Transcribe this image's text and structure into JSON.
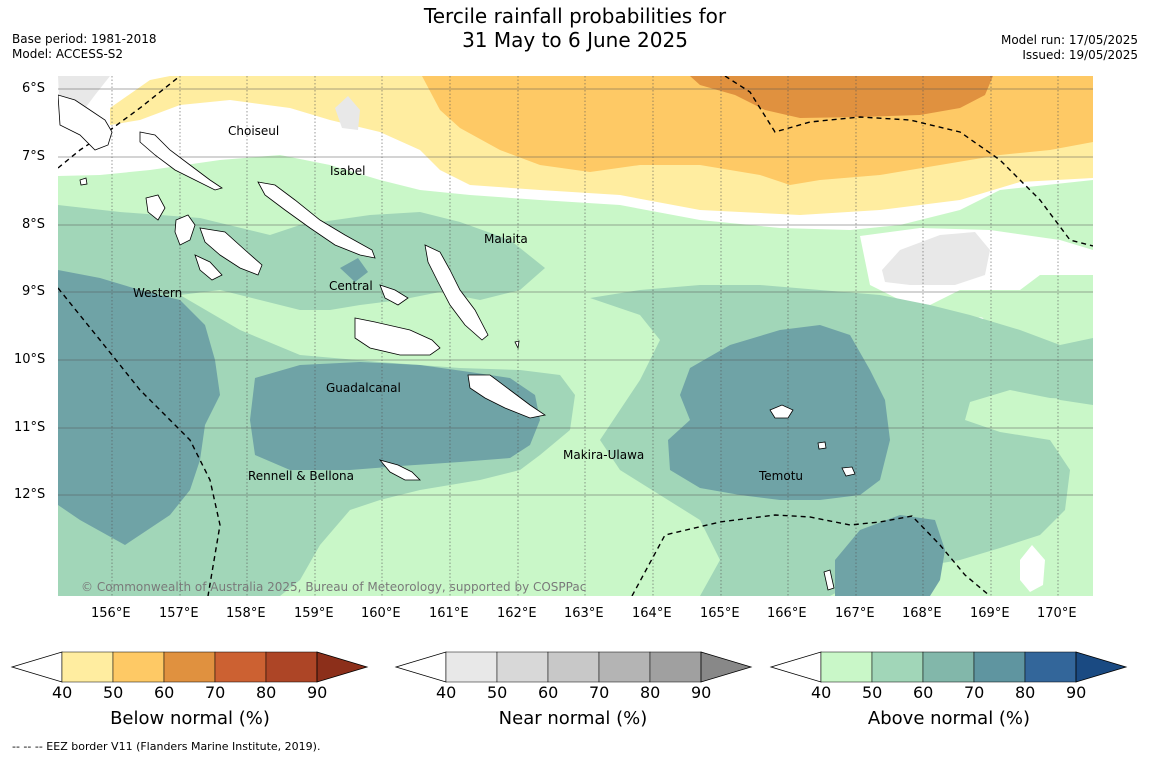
{
  "header": {
    "title_line1": "Tercile rainfall probabilities for",
    "title_line2": "31 May to 6 June 2025",
    "base_period": "Base period: 1981-2018",
    "model": "Model: ACCESS-S2",
    "model_run": "Model run: 17/05/2025",
    "issued": "Issued: 19/05/2025"
  },
  "map": {
    "lat_labels": [
      "6°S",
      "7°S",
      "8°S",
      "9°S",
      "10°S",
      "11°S",
      "12°S"
    ],
    "lon_labels": [
      "156°E",
      "157°E",
      "158°E",
      "159°E",
      "160°E",
      "161°E",
      "162°E",
      "163°E",
      "164°E",
      "165°E",
      "166°E",
      "167°E",
      "168°E",
      "169°E",
      "170°E"
    ],
    "places": {
      "choiseul": "Choiseul",
      "isabel": "Isabel",
      "malaita": "Malaita",
      "western": "Western",
      "central": "Central",
      "guadalcanal": "Guadalcanal",
      "makira": "Makira-Ulawa",
      "temotu": "Temotu",
      "rennell": "Rennell & Bellona"
    },
    "copyright": "© Commonwealth of Australia 2025, Bureau of Meteorology, supported by COSPPac"
  },
  "colorbars": [
    {
      "label": "Below normal (%)",
      "ticks": [
        "40",
        "50",
        "60",
        "70",
        "80",
        "90"
      ],
      "colors": [
        "#ffeda0",
        "#fec965",
        "#e0913f",
        "#cc6132",
        "#ad4526",
        "#8c2f1a"
      ]
    },
    {
      "label": "Near normal (%)",
      "ticks": [
        "40",
        "50",
        "60",
        "70",
        "80",
        "90"
      ],
      "colors": [
        "#e8e8e8",
        "#d8d8d8",
        "#c8c8c8",
        "#b4b4b4",
        "#a0a0a0",
        "#888888"
      ]
    },
    {
      "label": "Above normal (%)",
      "ticks": [
        "40",
        "50",
        "60",
        "70",
        "80",
        "90"
      ],
      "colors": [
        "#c9f7c8",
        "#a1d6b8",
        "#82b7aa",
        "#5f95a0",
        "#33669a",
        "#1a4a82"
      ]
    }
  ],
  "footnote": "--  --  -- EEZ border V11 (Flanders Marine Institute, 2019)."
}
